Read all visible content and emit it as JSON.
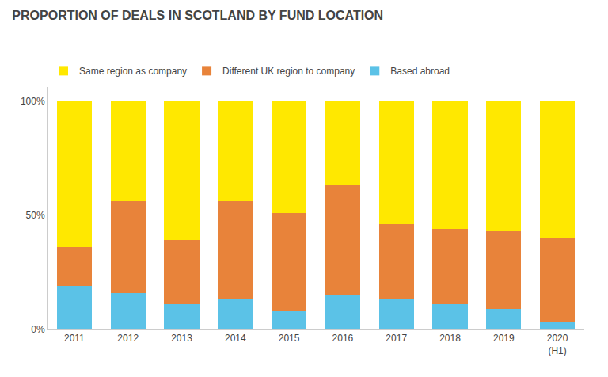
{
  "chart_data": {
    "type": "bar",
    "title": "PROPORTION OF DEALS IN SCOTLAND BY FUND LOCATION",
    "categories": [
      "2011",
      "2012",
      "2013",
      "2014",
      "2015",
      "2016",
      "2017",
      "2018",
      "2019",
      "2020\n(H1)"
    ],
    "series": [
      {
        "name": "Based abroad",
        "color": "#5BC2E7",
        "values": [
          19,
          16,
          11,
          13,
          8,
          15,
          13,
          11,
          9,
          3
        ]
      },
      {
        "name": "Different UK region to company",
        "color": "#E8833A",
        "values": [
          17,
          40,
          28,
          43,
          43,
          48,
          33,
          33,
          34,
          37
        ]
      },
      {
        "name": "Same region as company",
        "color": "#FFE800",
        "values": [
          64,
          44,
          61,
          44,
          49,
          37,
          54,
          56,
          57,
          60
        ]
      }
    ],
    "stacked": true,
    "ylim": [
      0,
      106
    ],
    "yticks": [
      {
        "value": 0,
        "label": "0%"
      },
      {
        "value": 50,
        "label": "50%"
      },
      {
        "value": 100,
        "label": "100%"
      }
    ],
    "grid": false,
    "legend": "upper left"
  }
}
